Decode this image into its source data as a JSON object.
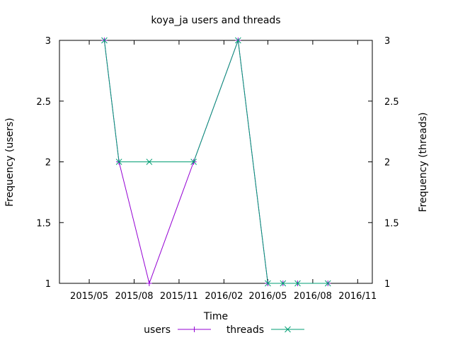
{
  "chart_data": {
    "type": "line",
    "title": "koya_ja users and threads",
    "xlabel": "Time",
    "ylabel": "Frequency (users)",
    "y2label": "Frequency (threads)",
    "x_axis_type": "date",
    "xlim": [
      "2015-03-01",
      "2016-12-01"
    ],
    "ylim": [
      1,
      3
    ],
    "y2lim": [
      1,
      3
    ],
    "x_ticks": [
      {
        "date": "2015-05-01",
        "label": "2015/05"
      },
      {
        "date": "2015-08-01",
        "label": "2015/08"
      },
      {
        "date": "2015-11-01",
        "label": "2015/11"
      },
      {
        "date": "2016-02-01",
        "label": "2016/02"
      },
      {
        "date": "2016-05-01",
        "label": "2016/05"
      },
      {
        "date": "2016-08-01",
        "label": "2016/08"
      },
      {
        "date": "2016-11-01",
        "label": "2016/11"
      }
    ],
    "y_ticks": [
      {
        "value": 1,
        "label": "1"
      },
      {
        "value": 1.5,
        "label": "1.5"
      },
      {
        "value": 2,
        "label": "2"
      },
      {
        "value": 2.5,
        "label": "2.5"
      },
      {
        "value": 3,
        "label": "3"
      }
    ],
    "grid": false,
    "legend_position": "bottom",
    "series": [
      {
        "name": "users",
        "color": "#9400d3",
        "marker": "plus",
        "points": [
          {
            "x": "2015-06-01",
            "y": 3
          },
          {
            "x": "2015-07-01",
            "y": 2
          },
          {
            "x": "2015-09-01",
            "y": 1
          },
          {
            "x": "2015-12-01",
            "y": 2
          },
          {
            "x": "2016-03-01",
            "y": 3
          },
          {
            "x": "2016-05-01",
            "y": 1
          },
          {
            "x": "2016-06-01",
            "y": 1
          },
          {
            "x": "2016-07-01",
            "y": 1
          },
          {
            "x": "2016-09-01",
            "y": 1
          }
        ]
      },
      {
        "name": "threads",
        "color": "#009e73",
        "marker": "cross",
        "points": [
          {
            "x": "2015-06-01",
            "y": 3
          },
          {
            "x": "2015-07-01",
            "y": 2
          },
          {
            "x": "2015-09-01",
            "y": 2
          },
          {
            "x": "2015-12-01",
            "y": 2
          },
          {
            "x": "2016-03-01",
            "y": 3
          },
          {
            "x": "2016-05-01",
            "y": 1
          },
          {
            "x": "2016-06-01",
            "y": 1
          },
          {
            "x": "2016-07-01",
            "y": 1
          },
          {
            "x": "2016-09-01",
            "y": 1
          }
        ]
      }
    ]
  }
}
